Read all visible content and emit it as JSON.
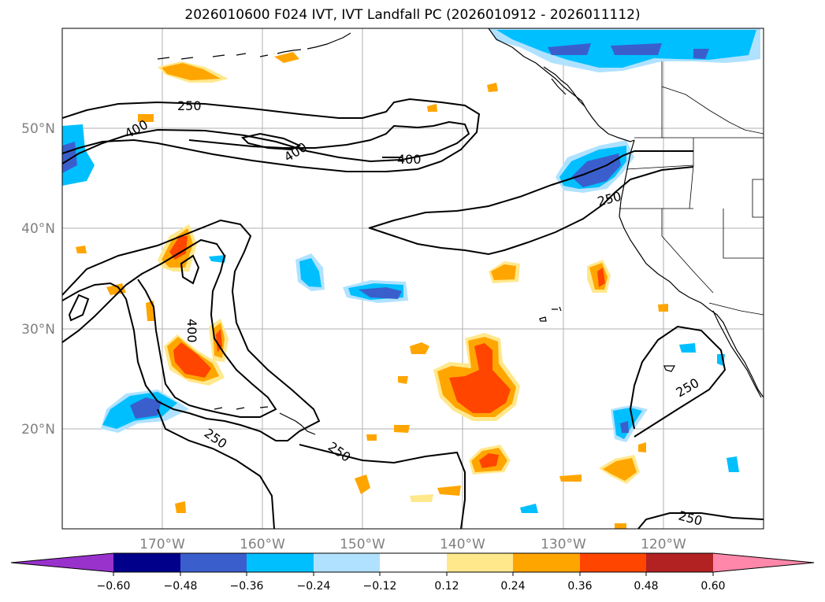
{
  "title": "2026010600 F024 IVT, IVT Landfall PC (2026010912 - 2026011112)",
  "map": {
    "lon_range": [
      -180,
      -110
    ],
    "lat_range": [
      10,
      60
    ],
    "lon_ticks": [
      "170°W",
      "160°W",
      "150°W",
      "140°W",
      "130°W",
      "120°W"
    ],
    "lat_ticks": [
      "50°N",
      "40°N",
      "30°N",
      "20°N"
    ],
    "contour_labels": [
      "250",
      "400",
      "400",
      "400",
      "250",
      "400",
      "250",
      "250",
      "250",
      "250"
    ]
  },
  "colorbar": {
    "tick_labels": [
      "−0.60",
      "−0.48",
      "−0.36",
      "−0.24",
      "−0.12",
      "0.12",
      "0.24",
      "0.36",
      "0.48",
      "0.60"
    ],
    "colors": [
      "#9932CC",
      "#00008B",
      "#3A5FCD",
      "#00BFFF",
      "#B0E2FF",
      "#FFFFFF",
      "#FFE88C",
      "#FFA500",
      "#FF4500",
      "#B22222",
      "#FF88AA"
    ]
  }
}
